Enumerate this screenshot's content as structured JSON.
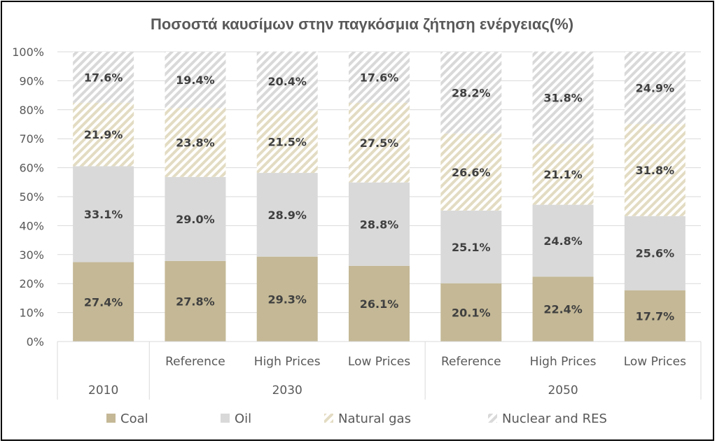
{
  "chart_data": {
    "type": "bar",
    "stacked": true,
    "percent_stacked": true,
    "title": "Ποσοστά καυσίμων στην παγκόσμια ζήτηση ενέργειας(%)",
    "y_ticks": [
      "0%",
      "10%",
      "20%",
      "30%",
      "40%",
      "50%",
      "60%",
      "70%",
      "80%",
      "90%",
      "100%"
    ],
    "ylim": [
      0,
      100
    ],
    "categories": [
      {
        "group": "2010",
        "label": ""
      },
      {
        "group": "2030",
        "label": "Reference"
      },
      {
        "group": "2030",
        "label": "High Prices"
      },
      {
        "group": "2030",
        "label": "Low Prices"
      },
      {
        "group": "2050",
        "label": "Reference"
      },
      {
        "group": "2050",
        "label": "High Prices"
      },
      {
        "group": "2050",
        "label": "Low Prices"
      }
    ],
    "groups": [
      "2010",
      "2030",
      "2050"
    ],
    "series": [
      {
        "name": "Coal",
        "color": "#c4b896",
        "pattern": "solid",
        "values": [
          27.4,
          27.8,
          29.3,
          26.1,
          20.1,
          22.4,
          17.7
        ],
        "labels": [
          "27.4%",
          "27.8%",
          "29.3%",
          "26.1%",
          "20.1%",
          "22.4%",
          "17.7%"
        ]
      },
      {
        "name": "Oil",
        "color": "#d9d9d9",
        "pattern": "solid",
        "values": [
          33.1,
          29.0,
          28.9,
          28.8,
          25.1,
          24.8,
          25.6
        ],
        "labels": [
          "33.1%",
          "29.0%",
          "28.9%",
          "28.8%",
          "25.1%",
          "24.8%",
          "25.6%"
        ]
      },
      {
        "name": "Natural gas",
        "color": "#e3dcc3",
        "pattern": "hatch",
        "values": [
          21.9,
          23.8,
          21.5,
          27.5,
          26.6,
          21.1,
          31.8
        ],
        "labels": [
          "21.9%",
          "23.8%",
          "21.5%",
          "27.5%",
          "26.6%",
          "21.1%",
          "31.8%"
        ]
      },
      {
        "name": "Nuclear and RES",
        "color": "#d9d9d9",
        "pattern": "hatch",
        "values": [
          17.6,
          19.4,
          20.4,
          17.6,
          28.2,
          31.8,
          24.9
        ],
        "labels": [
          "17.6%",
          "19.4%",
          "20.4%",
          "17.6%",
          "28.2%",
          "31.8%",
          "24.9%"
        ]
      }
    ],
    "legend": {
      "position": "bottom",
      "items": [
        "Coal",
        "Oil",
        "Natural gas",
        "Nuclear and RES"
      ]
    },
    "grid": true
  }
}
